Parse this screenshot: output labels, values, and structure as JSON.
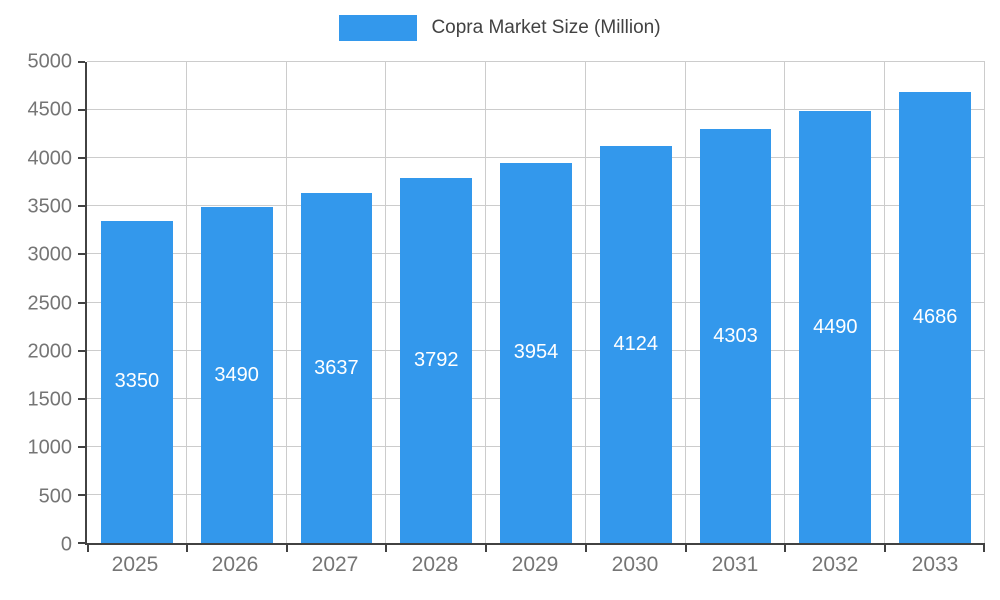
{
  "legend": {
    "label": "Copra Market Size (Million)"
  },
  "colors": {
    "background": "#FFFFFF",
    "bar": "#3398EC",
    "bar_label": "#FFFFFF",
    "axis": "#424242",
    "grid": "#CCCCCC",
    "tick_label": "#757575",
    "legend_text": "#424242"
  },
  "chart_data": {
    "type": "bar",
    "title": "Copra Market Size (Million)",
    "legend_entries": [
      "Copra Market Size (Million)"
    ],
    "legend_position": "top",
    "categories": [
      "2025",
      "2026",
      "2027",
      "2028",
      "2029",
      "2030",
      "2031",
      "2032",
      "2033"
    ],
    "series": [
      {
        "name": "Copra Market Size (Million)",
        "values": [
          3350,
          3490,
          3637,
          3792,
          3954,
          4124,
          4303,
          4490,
          4686
        ]
      }
    ],
    "xlabel": "",
    "ylabel": "",
    "ylim": [
      0,
      5000
    ],
    "ytick_step": 500,
    "yticks": [
      0,
      500,
      1000,
      1500,
      2000,
      2500,
      3000,
      3500,
      4000,
      4500,
      5000
    ],
    "grid": true,
    "value_labels": "inside-bar-centered"
  }
}
